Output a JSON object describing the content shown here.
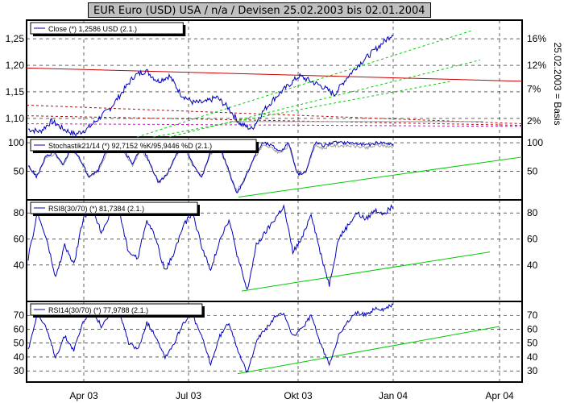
{
  "title": "EUR Euro (USD) USA / n/a / Devisen 25.02.2003 bis 02.01.2004",
  "side_label": "25.02.2003 = Basis",
  "colors": {
    "price": "#0000bb",
    "red": "#cc0000",
    "green": "#00cc00",
    "magenta": "#dd00dd",
    "gray": "#9a9a9a",
    "grid": "#000000"
  },
  "chart_data": [
    {
      "type": "line",
      "panel": "price",
      "legend": "Close (*) 1,2586 USD (2.1.)",
      "x_ticks": [
        "Apr 03",
        "Jul 03",
        "Okt 03",
        "Jan 04",
        "Apr 04"
      ],
      "yticks_left": [
        "1,25",
        "1,20",
        "1,15",
        "1,10"
      ],
      "yticks_right": [
        "16%",
        "12%",
        "7%",
        "2%"
      ],
      "ylim": [
        1.065,
        1.285
      ],
      "series": [
        {
          "x": [
            "25.02.03",
            "01.03.03",
            "10.03.03",
            "20.03.03",
            "01.04.03",
            "10.04.03",
            "20.04.03",
            "01.05.03",
            "10.05.03",
            "20.05.03",
            "01.06.03",
            "10.06.03",
            "20.06.03",
            "01.07.03",
            "10.07.03",
            "20.07.03",
            "01.08.03",
            "10.08.03",
            "20.08.03",
            "01.09.03",
            "10.09.03",
            "20.09.03",
            "01.10.03",
            "10.10.03",
            "20.10.03",
            "01.11.03",
            "10.11.03",
            "20.11.03",
            "01.12.03",
            "10.12.03",
            "20.12.03",
            "02.01.04"
          ],
          "y": [
            1.08,
            1.075,
            1.095,
            1.08,
            1.07,
            1.08,
            1.1,
            1.12,
            1.15,
            1.18,
            1.19,
            1.17,
            1.18,
            1.145,
            1.13,
            1.13,
            1.14,
            1.12,
            1.09,
            1.08,
            1.115,
            1.14,
            1.16,
            1.18,
            1.17,
            1.16,
            1.145,
            1.175,
            1.2,
            1.22,
            1.24,
            1.26
          ]
        }
      ],
      "trend_lines": [
        {
          "color": "red",
          "dash": "solid",
          "y_start": 1.195,
          "y_end": 1.17
        },
        {
          "color": "red",
          "dash": "dashed",
          "y_start": 1.125,
          "y_end": 1.09
        },
        {
          "color": "red",
          "dash": "dashed",
          "y_start": 1.105,
          "y_end": 1.087
        },
        {
          "color": "magenta",
          "dash": "dashed",
          "y_start": 1.09,
          "y_end": 1.085
        },
        {
          "color": "green",
          "dash": "dashed",
          "y_start": 1.065,
          "y_end": 1.265
        },
        {
          "color": "green",
          "dash": "dashed",
          "y_start": 1.065,
          "y_end": 1.17
        },
        {
          "color": "green",
          "dash": "dashed",
          "y_start": 1.065,
          "y_end": 1.21
        }
      ]
    },
    {
      "type": "line",
      "panel": "stochastic",
      "legend": "Stochastik21/14 (*) 92,7152 %K/95,9446 %D (2.1.)",
      "yticks": [
        "100",
        "50"
      ],
      "ylim": [
        0,
        110
      ],
      "series": [
        {
          "y": [
            60,
            40,
            75,
            85,
            60,
            95,
            70,
            40,
            50,
            85,
            100,
            90,
            60,
            95,
            65,
            30,
            45,
            80,
            95,
            60,
            40,
            85,
            95,
            55,
            10,
            40,
            75,
            100,
            95,
            85,
            100,
            45,
            50,
            100,
            95,
            100,
            100,
            100,
            98,
            95,
            100,
            100,
            96
          ]
        }
      ],
      "trend_line": {
        "color": "green",
        "y_start": 5,
        "y_end": 75
      }
    },
    {
      "type": "line",
      "panel": "rsi8",
      "legend": "RSI8(30/70) (*) 81,7384 (2.1.)",
      "yticks": [
        "80",
        "60",
        "40"
      ],
      "ylim": [
        12,
        90
      ],
      "series": [
        {
          "y": [
            45,
            80,
            60,
            30,
            55,
            40,
            75,
            85,
            65,
            80,
            80,
            50,
            45,
            75,
            60,
            35,
            50,
            70,
            80,
            55,
            35,
            60,
            75,
            45,
            20,
            55,
            65,
            75,
            85,
            50,
            60,
            80,
            50,
            25,
            60,
            70,
            80,
            75,
            82,
            80,
            85
          ]
        }
      ],
      "trend_line": {
        "color": "green",
        "y_start": 20,
        "y_end": 50
      }
    },
    {
      "type": "line",
      "panel": "rsi14",
      "legend": "RSI14(30/70) (*) 77,9788 (2.1.)",
      "yticks": [
        "70",
        "60",
        "50",
        "40",
        "30"
      ],
      "ylim": [
        22,
        80
      ],
      "series": [
        {
          "y": [
            45,
            72,
            60,
            40,
            55,
            45,
            65,
            75,
            62,
            70,
            72,
            50,
            45,
            65,
            55,
            40,
            50,
            65,
            70,
            55,
            35,
            55,
            65,
            45,
            28,
            52,
            60,
            68,
            72,
            55,
            60,
            70,
            50,
            35,
            55,
            65,
            72,
            70,
            75,
            74,
            78
          ]
        }
      ],
      "trend_line": {
        "color": "green",
        "y_start": 28,
        "y_end": 62
      }
    }
  ]
}
